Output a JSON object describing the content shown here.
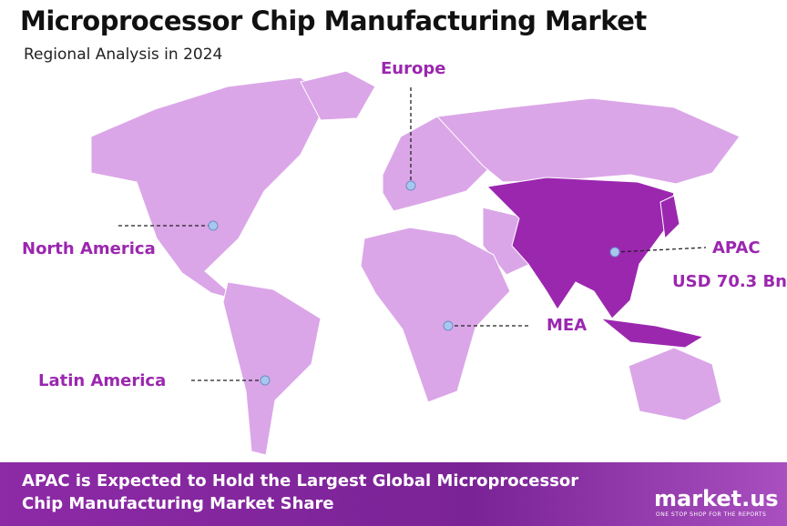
{
  "header": {
    "title": "Microprocessor Chip Manufacturing Market",
    "subtitle": "Regional Analysis in 2024"
  },
  "regions": {
    "europe": "Europe",
    "north_america": "North America",
    "latin_america": "Latin America",
    "mea": "MEA",
    "apac": "APAC",
    "apac_value": "USD 70.3 Bn"
  },
  "footer": {
    "text": "APAC is Expected to Hold the Largest Global Microprocessor Chip Manufacturing Market Share",
    "logo": "market.us",
    "tagline": "ONE STOP SHOP FOR THE REPORTS"
  }
}
